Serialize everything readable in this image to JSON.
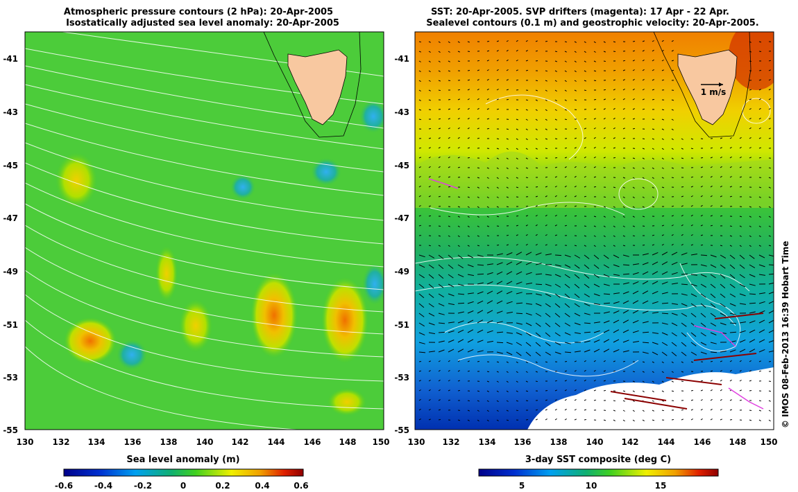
{
  "left_panel": {
    "title_line1": "Atmospheric pressure contours (2 hPa): 20-Apr-2005",
    "title_line2": "Isostatically adjusted sea level anomaly: 20-Apr-2005",
    "colorbar_label": "Sea level anomaly (m)",
    "colorbar_ticks": [
      "-0.6",
      "-0.4",
      "-0.2",
      "0",
      "0.2",
      "0.4",
      "0.6"
    ],
    "colorbar_colors": [
      "#00008a",
      "#0030d0",
      "#00a0f0",
      "#10b070",
      "#40d020",
      "#f0f000",
      "#f0a000",
      "#e02000",
      "#900000"
    ]
  },
  "right_panel": {
    "title_line1": "SST: 20-Apr-2005. SVP drifters (magenta): 17 Apr - 22 Apr.",
    "title_line2": "Sealevel contours (0.1 m) and geostrophic velocity: 20-Apr-2005.",
    "colorbar_label": "3-day SST composite (deg C)",
    "colorbar_ticks": [
      "5",
      "10",
      "15"
    ],
    "colorbar_colors": [
      "#00008a",
      "#0030d0",
      "#00a0f0",
      "#10b070",
      "#40d020",
      "#f0f000",
      "#f0a000",
      "#e02000",
      "#900000"
    ],
    "velocity_key_label": "1 m/s"
  },
  "axes": {
    "x_ticks": [
      "130",
      "132",
      "134",
      "136",
      "138",
      "140",
      "142",
      "144",
      "146",
      "148",
      "150"
    ],
    "y_ticks": [
      "-41",
      "-43",
      "-45",
      "-47",
      "-49",
      "-51",
      "-53",
      "-55"
    ]
  },
  "credit": "© IMOS 08-Feb-2013 16:39 Hobart Time",
  "colors": {
    "land": "#f8c8a0",
    "contour": "#ffffff",
    "drifter": "#e040e0",
    "vector": "#000000"
  }
}
